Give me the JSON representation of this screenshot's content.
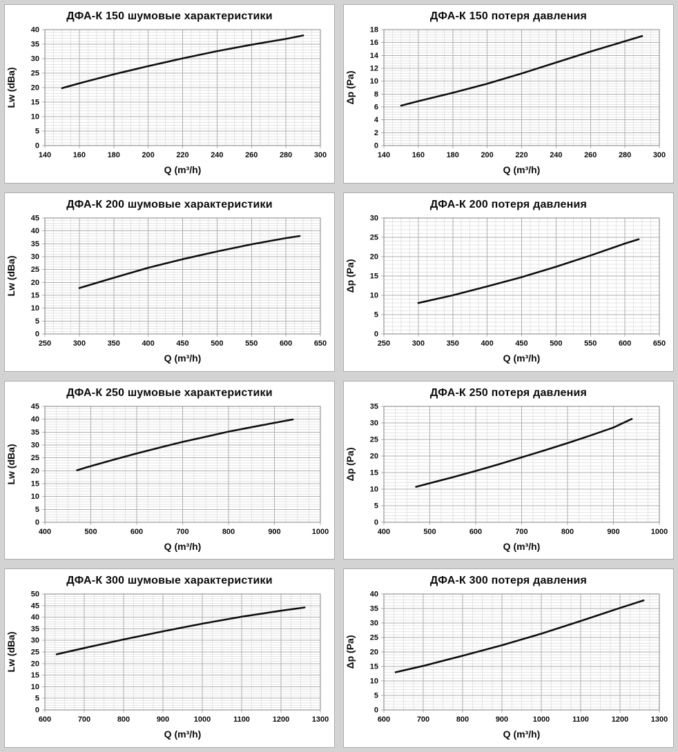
{
  "page": {
    "background_color": "#d3d3d3",
    "panel_background": "#ffffff",
    "panel_border_color": "#aaaaaa",
    "curve_color": "#0d0d0d",
    "major_grid_color": "#aeaeae",
    "minor_grid_color": "#e3e3e3",
    "plot_border_color": "#7f7f7f"
  },
  "chart_data": [
    {
      "type": "line",
      "title": "ДФА-К 150 шумовые характеристики",
      "xlabel": "Q (m³/h)",
      "ylabel": "Lw (dBa)",
      "xlim": [
        140,
        300
      ],
      "xstep": 20,
      "ylim": [
        0,
        40
      ],
      "ystep": 5,
      "minor_divisions": {
        "x": 4,
        "y": 5
      },
      "grid": true,
      "x": [
        150,
        160,
        180,
        200,
        220,
        240,
        260,
        280,
        290
      ],
      "y": [
        19.8,
        21.5,
        24.6,
        27.4,
        30.1,
        32.6,
        34.8,
        36.8,
        38.0
      ]
    },
    {
      "type": "line",
      "title": "ДФА-К 150 потеря давления",
      "xlabel": "Q (m³/h)",
      "ylabel": "Δp (Pa)",
      "xlim": [
        140,
        300
      ],
      "xstep": 20,
      "ylim": [
        0,
        18
      ],
      "ystep": 2,
      "minor_divisions": {
        "x": 4,
        "y": 5
      },
      "grid": true,
      "x": [
        150,
        160,
        180,
        200,
        220,
        240,
        260,
        280,
        290
      ],
      "y": [
        6.2,
        6.9,
        8.2,
        9.6,
        11.2,
        12.9,
        14.6,
        16.2,
        17.0
      ]
    },
    {
      "type": "line",
      "title": "ДФА-К 200 шумовые характеристики",
      "xlabel": "Q (m³/h)",
      "ylabel": "Lw (dBa)",
      "xlim": [
        250,
        650
      ],
      "xstep": 50,
      "ylim": [
        0,
        45
      ],
      "ystep": 5,
      "minor_divisions": {
        "x": 4,
        "y": 5
      },
      "grid": true,
      "x": [
        300,
        350,
        400,
        450,
        500,
        550,
        600,
        620
      ],
      "y": [
        17.8,
        21.8,
        25.7,
        29.0,
        32.0,
        34.8,
        37.2,
        38.0
      ]
    },
    {
      "type": "line",
      "title": "ДФА-К 200 потеря давления",
      "xlabel": "Q (m³/h)",
      "ylabel": "Δp (Pa)",
      "xlim": [
        250,
        650
      ],
      "xstep": 50,
      "ylim": [
        0,
        30
      ],
      "ystep": 5,
      "minor_divisions": {
        "x": 4,
        "y": 5
      },
      "grid": true,
      "x": [
        300,
        350,
        400,
        450,
        500,
        550,
        600,
        620
      ],
      "y": [
        8.0,
        10.0,
        12.3,
        14.7,
        17.4,
        20.3,
        23.4,
        24.5
      ]
    },
    {
      "type": "line",
      "title": "ДФА-К 250 шумовые характеристики",
      "xlabel": "Q (m³/h)",
      "ylabel": "Lw (dBa)",
      "xlim": [
        400,
        1000
      ],
      "xstep": 100,
      "ylim": [
        0,
        45
      ],
      "ystep": 5,
      "minor_divisions": {
        "x": 4,
        "y": 5
      },
      "grid": true,
      "x": [
        470,
        500,
        550,
        600,
        650,
        700,
        750,
        800,
        850,
        900,
        940
      ],
      "y": [
        20.2,
        21.8,
        24.3,
        26.7,
        29.0,
        31.2,
        33.2,
        35.2,
        36.9,
        38.6,
        39.9
      ]
    },
    {
      "type": "line",
      "title": "ДФА-К 250 потеря давления",
      "xlabel": "Q (m³/h)",
      "ylabel": "Δp (Pa)",
      "xlim": [
        400,
        1000
      ],
      "xstep": 100,
      "ylim": [
        0,
        35
      ],
      "ystep": 5,
      "minor_divisions": {
        "x": 4,
        "y": 5
      },
      "grid": true,
      "x": [
        470,
        500,
        550,
        600,
        650,
        700,
        750,
        800,
        850,
        900,
        940
      ],
      "y": [
        10.7,
        11.8,
        13.6,
        15.5,
        17.5,
        19.6,
        21.7,
        23.9,
        26.2,
        28.6,
        31.2
      ]
    },
    {
      "type": "line",
      "title": "ДФА-К 300 шумовые характеристики",
      "xlabel": "Q (m³/h)",
      "ylabel": "Lw (dBa)",
      "xlim": [
        600,
        1300
      ],
      "xstep": 100,
      "ylim": [
        0,
        50
      ],
      "ystep": 5,
      "minor_divisions": {
        "x": 4,
        "y": 5
      },
      "grid": true,
      "x": [
        630,
        700,
        800,
        900,
        1000,
        1100,
        1200,
        1260
      ],
      "y": [
        24.0,
        26.7,
        30.4,
        33.9,
        37.2,
        40.2,
        42.8,
        44.2
      ]
    },
    {
      "type": "line",
      "title": "ДФА-К 300 потеря давления",
      "xlabel": "Q (m³/h)",
      "ylabel": "Δp (Pa)",
      "xlim": [
        600,
        1300
      ],
      "xstep": 100,
      "ylim": [
        0,
        40
      ],
      "ystep": 5,
      "minor_divisions": {
        "x": 4,
        "y": 5
      },
      "grid": true,
      "x": [
        630,
        700,
        800,
        900,
        1000,
        1100,
        1200,
        1260
      ],
      "y": [
        13.0,
        15.2,
        18.7,
        22.3,
        26.3,
        30.7,
        35.2,
        37.8
      ]
    }
  ]
}
